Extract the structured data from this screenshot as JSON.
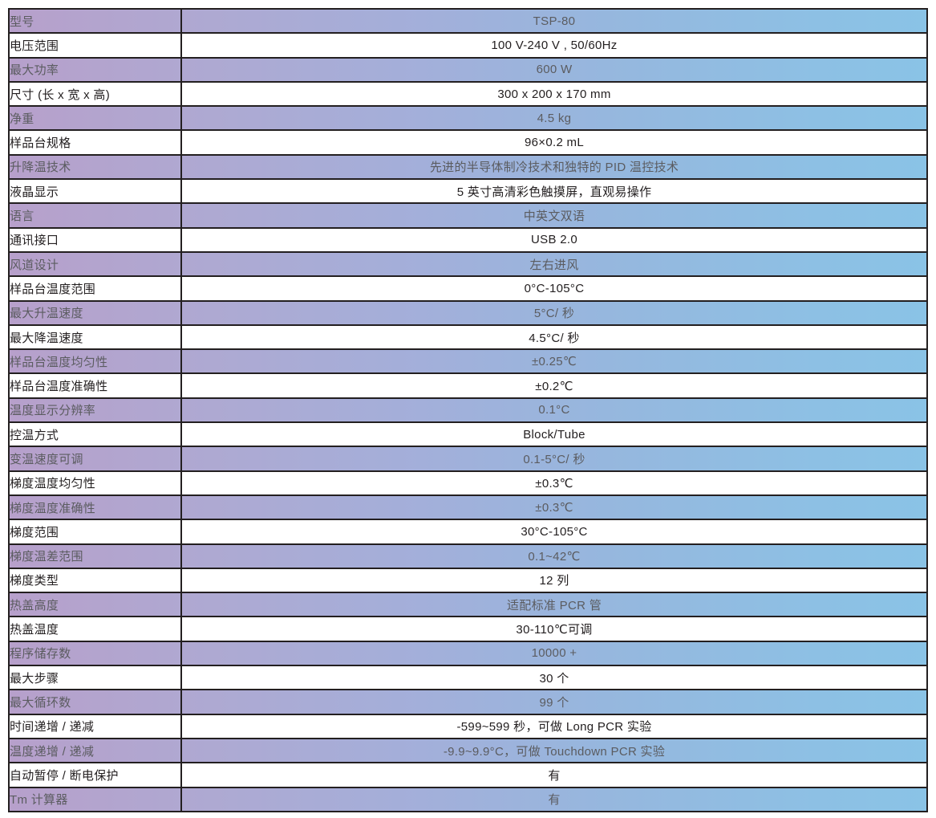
{
  "table": {
    "colors": {
      "row_gradient_left": "#b7a0cb",
      "row_gradient_mid": "#a3afda",
      "row_gradient_right": "#8ac3e6",
      "border": "#231f20",
      "text_plain_rows": "#242021",
      "text_shaded_rows": "#5b5c60"
    },
    "rows": [
      {
        "label": "型号",
        "value": "TSP-80"
      },
      {
        "label": "电压范围",
        "value": "100 V-240 V , 50/60Hz"
      },
      {
        "label": "最大功率",
        "value": "600 W"
      },
      {
        "label": "尺寸 (长 x 宽 x 高)",
        "value": "300 x 200 x 170 mm"
      },
      {
        "label": "净重",
        "value": "4.5 kg"
      },
      {
        "label": "样品台规格",
        "value": "96×0.2 mL"
      },
      {
        "label": "升降温技术",
        "value": "先进的半导体制冷技术和独特的 PID 温控技术"
      },
      {
        "label": "液晶显示",
        "value": "5 英寸高清彩色触摸屏，直观易操作"
      },
      {
        "label": "语言",
        "value": "中英文双语"
      },
      {
        "label": "通讯接口",
        "value": "USB 2.0"
      },
      {
        "label": "风道设计",
        "value": "左右进风"
      },
      {
        "label": "样品台温度范围",
        "value": "0°C-105°C"
      },
      {
        "label": "最大升温速度",
        "value": "5°C/ 秒"
      },
      {
        "label": "最大降温速度",
        "value": "4.5°C/ 秒"
      },
      {
        "label": "样品台温度均匀性",
        "value": "±0.25℃"
      },
      {
        "label": "样品台温度准确性",
        "value": "±0.2℃"
      },
      {
        "label": "温度显示分辨率",
        "value": "0.1°C"
      },
      {
        "label": "控温方式",
        "value": "Block/Tube"
      },
      {
        "label": "变温速度可调",
        "value": "0.1-5°C/ 秒"
      },
      {
        "label": "梯度温度均匀性",
        "value": "±0.3℃"
      },
      {
        "label": "梯度温度准确性",
        "value": "±0.3℃"
      },
      {
        "label": "梯度范围",
        "value": "30°C-105°C"
      },
      {
        "label": "梯度温差范围",
        "value": "0.1~42℃"
      },
      {
        "label": "梯度类型",
        "value": "12 列"
      },
      {
        "label": "热盖高度",
        "value": "适配标准 PCR 管"
      },
      {
        "label": "热盖温度",
        "value": "30-110℃可调"
      },
      {
        "label": "程序储存数",
        "value": "10000 +"
      },
      {
        "label": "最大步骤",
        "value": "30 个"
      },
      {
        "label": "最大循环数",
        "value": "99 个"
      },
      {
        "label": "时间递增 / 递减",
        "value": "-599~599 秒，可做 Long PCR 实验"
      },
      {
        "label": "温度递增 / 递减",
        "value": "-9.9~9.9°C，可做 Touchdown PCR 实验"
      },
      {
        "label": "自动暂停 / 断电保护",
        "value": "有"
      },
      {
        "label": "Tm 计算器",
        "value": "有"
      }
    ]
  }
}
